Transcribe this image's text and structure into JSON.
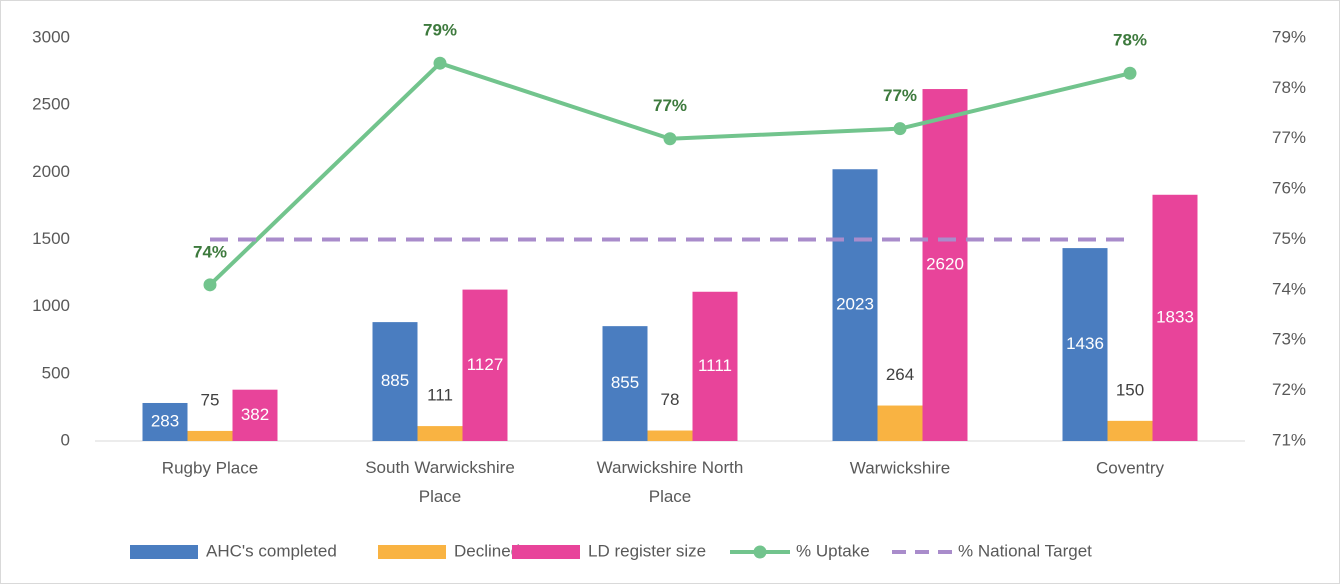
{
  "chart_data": {
    "type": "bar_line",
    "categories": [
      "Rugby Place",
      "South Warwickshire Place",
      "Warwickshire North Place",
      "Warwickshire",
      "Coventry"
    ],
    "series": [
      {
        "name": "AHC's completed",
        "color": "#4a7dc0",
        "values": [
          283,
          885,
          855,
          2023,
          1436
        ]
      },
      {
        "name": "Declined",
        "color": "#f9b342",
        "values": [
          75,
          111,
          78,
          264,
          150
        ]
      },
      {
        "name": "LD register size",
        "color": "#e8449a",
        "values": [
          382,
          1127,
          1111,
          2620,
          1833
        ]
      },
      {
        "name": "% Uptake",
        "color": "#72c48d",
        "axis": "y2",
        "values": [
          74.1,
          78.5,
          77.0,
          77.2,
          78.3
        ],
        "value_labels": [
          "74%",
          "79%",
          "77%",
          "77%",
          "78%"
        ]
      },
      {
        "name": "% National Target",
        "color": "#a98ccb",
        "axis": "y2",
        "dashed": true,
        "values": [
          75,
          75,
          75,
          75,
          75
        ]
      }
    ],
    "ylim": [
      0,
      3000
    ],
    "yticks": [
      0,
      500,
      1000,
      1500,
      2000,
      2500,
      3000
    ],
    "y2lim": [
      71,
      79
    ],
    "y2ticks": [
      {
        "value": 71,
        "label": "71%"
      },
      {
        "value": 72,
        "label": "72%"
      },
      {
        "value": 73,
        "label": "73%"
      },
      {
        "value": 74,
        "label": "74%"
      },
      {
        "value": 75,
        "label": "75%"
      },
      {
        "value": 76,
        "label": "76%"
      },
      {
        "value": 77,
        "label": "77%"
      },
      {
        "value": 78,
        "label": "78%"
      },
      {
        "value": 79,
        "label": "79%"
      }
    ],
    "legend": "bottom"
  }
}
